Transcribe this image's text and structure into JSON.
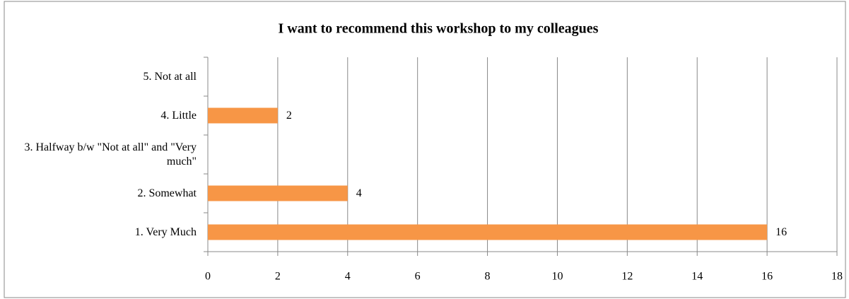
{
  "chart_data": {
    "type": "hbar",
    "title": "I want to recommend this workshop to my colleagues",
    "categories": [
      "1. Very Much",
      "2. Somewhat",
      "3. Halfway b/w \"Not at all\" and \"Very much\"",
      "4. Little",
      "5. Not at all"
    ],
    "values": [
      16,
      4,
      null,
      2,
      null
    ],
    "color": "#f79646",
    "xlim": [
      0,
      18
    ],
    "xticks": [
      0,
      2,
      4,
      6,
      8,
      10,
      12,
      14,
      16,
      18
    ],
    "grid": true
  }
}
